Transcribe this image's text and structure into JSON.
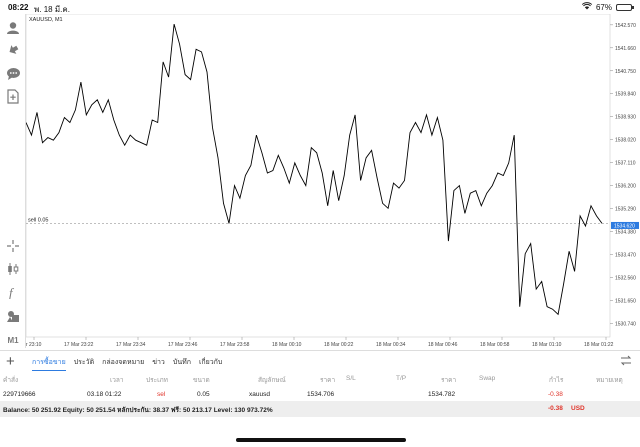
{
  "status_bar": {
    "time": "08:22",
    "date": "พ. 18 มี.ค.",
    "battery": "67%",
    "battery_level": 0.67
  },
  "toolbar": {
    "items": [
      "account",
      "trade",
      "chat",
      "new-order",
      "crosshair",
      "candles",
      "indicators",
      "objects",
      "timeframe"
    ],
    "timeframe_label": "M1"
  },
  "chart": {
    "symbol_label": "XAUUSD, M1",
    "sell_line_label": "sell 0.05",
    "current_price_label": "1534.620",
    "sell_line_price": 1534.706,
    "colors": {
      "line": "#000000",
      "price_tag": "#2d7be0",
      "grid": "#d9d9d9"
    }
  },
  "chart_data": {
    "type": "line",
    "ylim": [
      1530.2,
      1543.0
    ],
    "y_ticks": [
      "1542.570",
      "1541.660",
      "1540.750",
      "1539.840",
      "1538.930",
      "1538.020",
      "1537.110",
      "1536.200",
      "1535.290",
      "1534.380",
      "1533.470",
      "1532.560",
      "1531.650",
      "1530.740"
    ],
    "x_ticks": [
      "17 Mar 23:10",
      "17 Mar 23:22",
      "17 Mar 23:34",
      "17 Mar 23:46",
      "17 Mar 23:58",
      "18 Mar 00:10",
      "18 Mar 00:22",
      "18 Mar 00:34",
      "18 Mar 00:46",
      "18 Mar 00:58",
      "18 Mar 01:10",
      "18 Mar 01:22"
    ],
    "series": [
      {
        "values": [
          1538.7,
          1538.2,
          1539.1,
          1537.9,
          1538.1,
          1538.0,
          1538.3,
          1538.9,
          1538.7,
          1539.2,
          1540.3,
          1539.0,
          1539.4,
          1539.6,
          1539.1,
          1539.6,
          1538.8,
          1538.2,
          1537.8,
          1538.2,
          1538.0,
          1537.9,
          1537.8,
          1538.8,
          1538.7,
          1541.1,
          1540.5,
          1542.6,
          1541.8,
          1540.6,
          1540.4,
          1541.6,
          1541.5,
          1540.7,
          1538.5,
          1537.3,
          1535.5,
          1534.7,
          1536.2,
          1535.7,
          1536.6,
          1537.0,
          1538.2,
          1537.5,
          1536.7,
          1536.8,
          1537.4,
          1536.9,
          1536.3,
          1537.1,
          1536.6,
          1536.2,
          1537.7,
          1537.5,
          1536.7,
          1535.4,
          1536.8,
          1535.6,
          1536.6,
          1538.2,
          1539.0,
          1536.4,
          1537.3,
          1537.6,
          1536.5,
          1535.5,
          1535.3,
          1536.3,
          1536.1,
          1536.4,
          1538.3,
          1538.7,
          1538.3,
          1539.0,
          1538.2,
          1538.9,
          1538.0,
          1534.0,
          1536.0,
          1536.2,
          1535.1,
          1535.9,
          1536.0,
          1535.4,
          1535.9,
          1536.2,
          1536.7,
          1536.6,
          1537.1,
          1538.2,
          1531.4,
          1533.5,
          1533.9,
          1532.1,
          1532.4,
          1531.4,
          1531.3,
          1531.1,
          1532.3,
          1533.6,
          1532.8,
          1535.0,
          1534.6,
          1535.4,
          1535.0,
          1534.7
        ]
      }
    ]
  },
  "tabs": {
    "items": [
      "การซื้อขาย",
      "ประวัติ",
      "กล่องจดหมาย",
      "ข่าว",
      "บันทึก",
      "เกี่ยวกับ"
    ],
    "active_index": 0
  },
  "table": {
    "headers": [
      "คำสั่ง",
      "เวลา",
      "ประเภท",
      "ขนาด",
      "สัญลักษณ์",
      "ราคา",
      "S/L",
      "T/P",
      "ราคา",
      "Swap",
      "กำไร",
      "หมายเหตุ"
    ],
    "order": {
      "ticket": "229719666",
      "time": "03.18 01:22",
      "type": "sel",
      "size": "0.05",
      "symbol": "xauusd",
      "open_price": "1534.706",
      "sl": "",
      "tp": "",
      "price": "1534.782",
      "swap": "",
      "profit": "-0.38",
      "comment": ""
    }
  },
  "balance": {
    "text": "Balance: 50 251.92 Equity: 50 251.54 หลักประกัน: 38.37 ฟรี: 50 213.17 Level: 130 973.72%",
    "profit": "-0.38",
    "currency": "USD"
  }
}
